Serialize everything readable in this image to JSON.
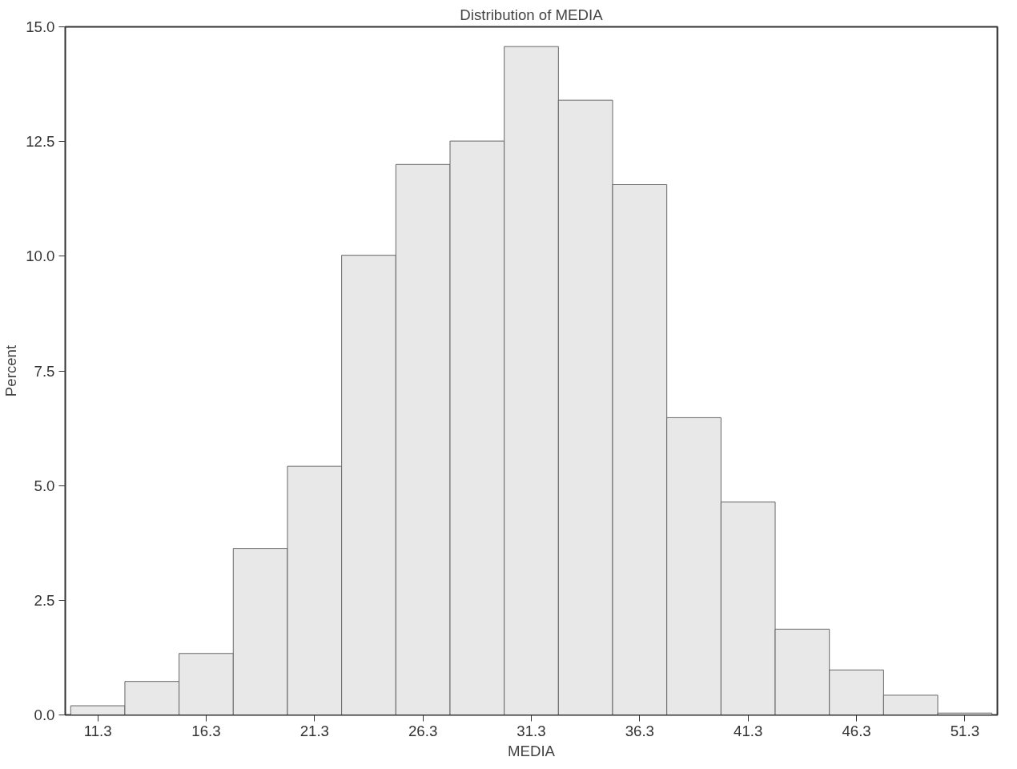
{
  "chart_data": {
    "type": "histogram",
    "title": "Distribution of MEDIA",
    "xlabel": "MEDIA",
    "ylabel": "Percent",
    "bins": [
      10.05,
      12.55,
      15.05,
      17.55,
      20.05,
      22.55,
      25.05,
      27.55,
      30.05,
      32.55,
      35.05,
      37.55,
      40.05,
      42.55,
      45.05,
      47.55,
      50.05,
      52.55
    ],
    "values": [
      0.2,
      0.73,
      1.34,
      3.63,
      5.42,
      10.02,
      12.0,
      12.51,
      14.57,
      13.4,
      11.56,
      6.48,
      4.64,
      1.87,
      0.98,
      0.43,
      0.04
    ],
    "color": "#e8e8e8",
    "xlim": [
      9.8,
      52.8
    ],
    "ylim": [
      0,
      15
    ],
    "xticks": [
      11.3,
      16.3,
      21.3,
      26.3,
      31.3,
      36.3,
      41.3,
      46.3,
      51.3
    ],
    "yticks": [
      {
        "value": 0,
        "label": "0.0"
      },
      {
        "value": 2.5,
        "label": "2.5"
      },
      {
        "value": 5,
        "label": "5.0"
      },
      {
        "value": 7.5,
        "label": "7.5"
      },
      {
        "value": 10,
        "label": "10.0"
      },
      {
        "value": 12.5,
        "label": "12.5"
      },
      {
        "value": 15,
        "label": "15.0"
      }
    ],
    "grid": false
  }
}
